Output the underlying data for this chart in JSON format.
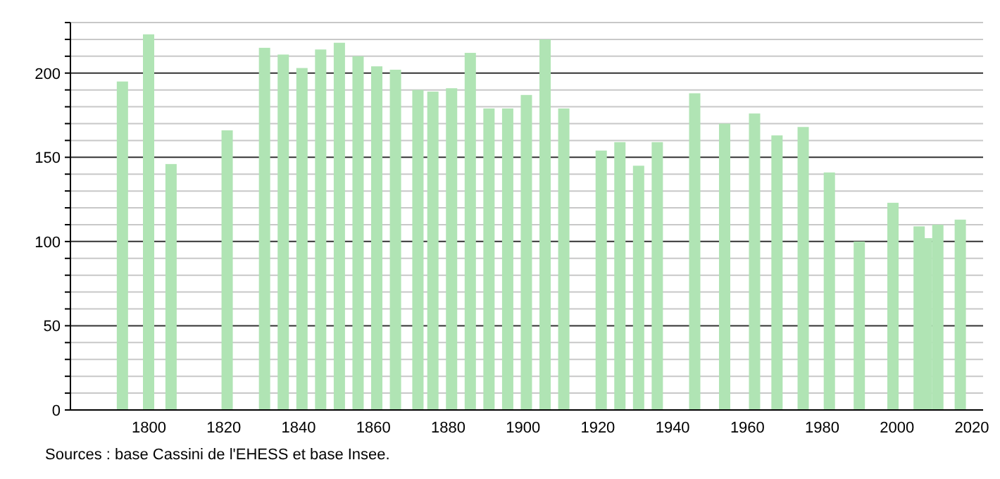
{
  "chart_data": {
    "type": "bar",
    "x": [
      1793,
      1800,
      1806,
      1821,
      1831,
      1836,
      1841,
      1846,
      1851,
      1856,
      1861,
      1866,
      1872,
      1876,
      1881,
      1886,
      1891,
      1896,
      1901,
      1906,
      1911,
      1921,
      1926,
      1931,
      1936,
      1946,
      1954,
      1962,
      1968,
      1975,
      1982,
      1990,
      1999,
      2006,
      2008,
      2011,
      2017
    ],
    "values": [
      195,
      223,
      146,
      166,
      215,
      211,
      203,
      214,
      218,
      210,
      204,
      202,
      190,
      189,
      191,
      212,
      179,
      179,
      187,
      220,
      179,
      154,
      159,
      145,
      159,
      188,
      170,
      176,
      163,
      168,
      141,
      100,
      123,
      109,
      102,
      110,
      113
    ],
    "color": "#b0e4b4",
    "xlim": [
      1779,
      2023
    ],
    "xticks": [
      1800,
      1820,
      1840,
      1860,
      1880,
      1900,
      1920,
      1940,
      1960,
      1980,
      2000,
      2020
    ],
    "ylim": [
      0,
      230
    ],
    "yticks": [
      0,
      {
        "value": 10,
        "label": null
      },
      {
        "value": 20,
        "label": null
      },
      {
        "value": 30,
        "label": null
      },
      {
        "value": 40,
        "label": null
      },
      50,
      {
        "value": 60,
        "label": null
      },
      {
        "value": 70,
        "label": null
      },
      {
        "value": 80,
        "label": null
      },
      {
        "value": 90,
        "label": null
      },
      100,
      {
        "value": 110,
        "label": null
      },
      {
        "value": 120,
        "label": null
      },
      {
        "value": 130,
        "label": null
      },
      {
        "value": 140,
        "label": null
      },
      150,
      {
        "value": 160,
        "label": null
      },
      {
        "value": 170,
        "label": null
      },
      {
        "value": 180,
        "label": null
      },
      {
        "value": 190,
        "label": null
      },
      200,
      {
        "value": 210,
        "label": null
      },
      {
        "value": 220,
        "label": null
      },
      {
        "value": 230,
        "label": null
      }
    ],
    "grid": "y",
    "annotations": [
      "Sources : base Cassini de l'EHESS et base Insee."
    ]
  }
}
